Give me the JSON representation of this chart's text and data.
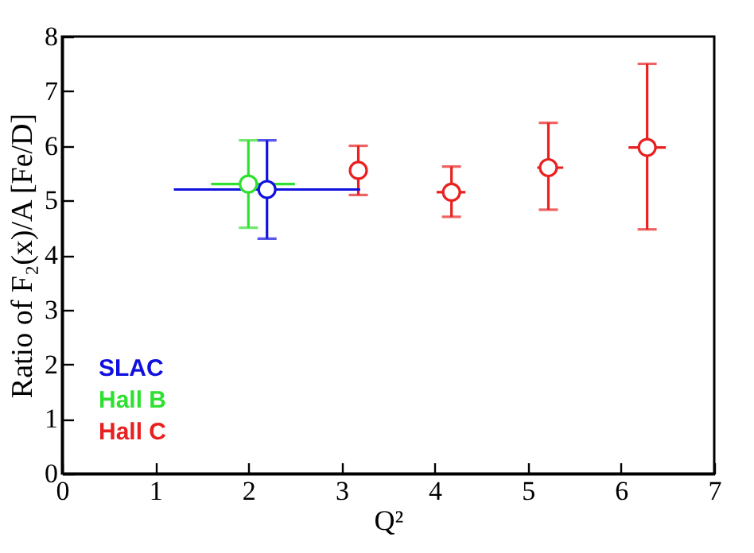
{
  "chart_data": {
    "type": "scatter",
    "xlabel": "Q²",
    "ylabel": "Ratio of F₂(x)/A [Fe/D]",
    "xlim": [
      0,
      7
    ],
    "xticks": [
      0,
      1,
      2,
      3,
      4,
      5,
      6,
      7
    ],
    "ylim": [
      0,
      8
    ],
    "yticks": [
      0,
      1,
      2,
      3,
      4,
      5,
      6,
      7,
      8
    ],
    "marker": "circle",
    "legend": "bottom left",
    "series": [
      {
        "name": "SLAC",
        "color": "#1010e0",
        "x": [
          2.2
        ],
        "values": [
          5.2
        ],
        "errors": [
          [
            4.3,
            6.1
          ]
        ],
        "xerrors": [
          [
            1.2,
            3.2
          ]
        ]
      },
      {
        "name": "Hall B",
        "color": "#30e030",
        "x": [
          2.0
        ],
        "values": [
          5.3
        ],
        "errors": [
          [
            4.5,
            6.1
          ]
        ],
        "xerrors": [
          [
            1.6,
            2.5
          ]
        ]
      },
      {
        "name": "Hall C",
        "color": "#e82020",
        "x": [
          3.18,
          4.18,
          5.22,
          6.28
        ],
        "values": [
          5.55,
          5.15,
          5.6,
          5.97
        ],
        "errors": [
          [
            5.1,
            6.0
          ],
          [
            4.7,
            5.62
          ],
          [
            4.83,
            6.42
          ],
          [
            4.47,
            7.5
          ]
        ],
        "xerrors": [
          [
            3.1,
            3.26
          ],
          [
            4.02,
            4.33
          ],
          [
            5.1,
            5.38
          ],
          [
            6.08,
            6.48
          ]
        ]
      }
    ]
  }
}
